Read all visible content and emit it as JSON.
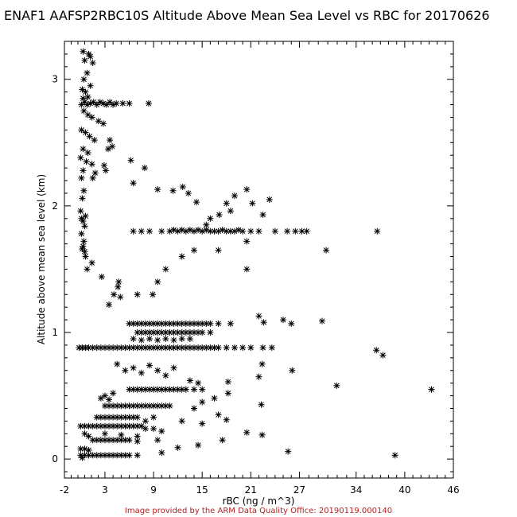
{
  "title": "ENAF1 AAFSP2RBC10S Altitude Above Mean Sea Level vs RBC for 20170626",
  "credit": "Image provided by the ARM Data Quality Office: 20190119.000140",
  "chart_data": {
    "type": "scatter",
    "xlabel": "rBC (ng / m^3)",
    "ylabel": "Altitude above mean sea level (km)",
    "xlim": [
      -2,
      46
    ],
    "ylim": [
      -0.15,
      3.3
    ],
    "xticks": [
      -2,
      3,
      9,
      15,
      21,
      27,
      34,
      40,
      46
    ],
    "yticks": [
      0,
      1,
      2,
      3
    ],
    "marker": "asterisk",
    "points": [
      [
        0.3,
        3.22
      ],
      [
        1.0,
        3.2
      ],
      [
        1.2,
        3.18
      ],
      [
        0.5,
        3.15
      ],
      [
        1.5,
        3.13
      ],
      [
        0.8,
        3.05
      ],
      [
        0.4,
        3.0
      ],
      [
        1.2,
        2.95
      ],
      [
        0.2,
        2.92
      ],
      [
        0.6,
        2.9
      ],
      [
        0.3,
        2.85
      ],
      [
        0.9,
        2.86
      ],
      [
        0.1,
        2.8
      ],
      [
        0.5,
        2.82
      ],
      [
        0.8,
        2.8
      ],
      [
        1.2,
        2.81
      ],
      [
        1.6,
        2.82
      ],
      [
        2.0,
        2.8
      ],
      [
        2.4,
        2.82
      ],
      [
        2.8,
        2.81
      ],
      [
        3.2,
        2.8
      ],
      [
        3.6,
        2.82
      ],
      [
        4.0,
        2.8
      ],
      [
        4.4,
        2.81
      ],
      [
        5.2,
        2.81
      ],
      [
        6.0,
        2.81
      ],
      [
        8.4,
        2.81
      ],
      [
        0.4,
        2.75
      ],
      [
        0.9,
        2.72
      ],
      [
        1.4,
        2.7
      ],
      [
        2.2,
        2.67
      ],
      [
        2.8,
        2.65
      ],
      [
        0.1,
        2.6
      ],
      [
        0.6,
        2.58
      ],
      [
        1.1,
        2.55
      ],
      [
        1.7,
        2.52
      ],
      [
        3.6,
        2.52
      ],
      [
        0.3,
        2.45
      ],
      [
        0.9,
        2.42
      ],
      [
        3.4,
        2.45
      ],
      [
        3.9,
        2.47
      ],
      [
        0.0,
        2.38
      ],
      [
        0.7,
        2.35
      ],
      [
        1.4,
        2.33
      ],
      [
        2.9,
        2.32
      ],
      [
        3.1,
        2.28
      ],
      [
        0.3,
        2.28
      ],
      [
        1.8,
        2.26
      ],
      [
        1.5,
        2.22
      ],
      [
        6.2,
        2.36
      ],
      [
        7.9,
        2.3
      ],
      [
        0.1,
        2.22
      ],
      [
        0.4,
        2.12
      ],
      [
        0.2,
        2.06
      ],
      [
        6.5,
        2.18
      ],
      [
        9.5,
        2.13
      ],
      [
        11.4,
        2.12
      ],
      [
        0.0,
        1.96
      ],
      [
        0.3,
        1.88
      ],
      [
        0.5,
        1.84
      ],
      [
        0.1,
        1.78
      ],
      [
        0.4,
        1.72
      ],
      [
        0.2,
        1.66
      ],
      [
        0.6,
        1.6
      ],
      [
        1.4,
        1.55
      ],
      [
        0.8,
        1.5
      ],
      [
        2.6,
        1.44
      ],
      [
        4.6,
        1.36
      ],
      [
        4.1,
        1.3
      ],
      [
        4.7,
        1.4
      ],
      [
        4.9,
        1.28
      ],
      [
        3.5,
        1.22
      ],
      [
        7.0,
        1.3
      ],
      [
        8.9,
        1.3
      ],
      [
        9.5,
        1.4
      ],
      [
        10.5,
        1.5
      ],
      [
        12.5,
        1.6
      ],
      [
        14.0,
        1.65
      ],
      [
        17.0,
        1.65
      ],
      [
        20.5,
        1.72
      ],
      [
        20.5,
        1.5
      ],
      [
        30.3,
        1.65
      ],
      [
        12.6,
        2.15
      ],
      [
        13.3,
        2.1
      ],
      [
        14.3,
        2.03
      ],
      [
        16.0,
        1.9
      ],
      [
        15.5,
        1.85
      ],
      [
        17.1,
        1.93
      ],
      [
        18.0,
        2.02
      ],
      [
        18.5,
        1.96
      ],
      [
        19.0,
        2.08
      ],
      [
        20.5,
        2.13
      ],
      [
        21.2,
        2.02
      ],
      [
        22.5,
        1.93
      ],
      [
        23.3,
        2.05
      ],
      [
        6.5,
        1.8
      ],
      [
        7.5,
        1.8
      ],
      [
        8.5,
        1.8
      ],
      [
        10.0,
        1.8
      ],
      [
        11.0,
        1.8
      ],
      [
        11.5,
        1.81
      ],
      [
        12.0,
        1.8
      ],
      [
        12.5,
        1.81
      ],
      [
        13.0,
        1.8
      ],
      [
        13.5,
        1.81
      ],
      [
        14.0,
        1.8
      ],
      [
        14.5,
        1.81
      ],
      [
        15.0,
        1.8
      ],
      [
        15.5,
        1.81
      ],
      [
        16.0,
        1.8
      ],
      [
        16.5,
        1.8
      ],
      [
        17.0,
        1.8
      ],
      [
        17.5,
        1.81
      ],
      [
        18.0,
        1.8
      ],
      [
        18.5,
        1.8
      ],
      [
        19.0,
        1.8
      ],
      [
        19.5,
        1.81
      ],
      [
        20.0,
        1.8
      ],
      [
        21.0,
        1.8
      ],
      [
        22.0,
        1.8
      ],
      [
        24.0,
        1.8
      ],
      [
        25.5,
        1.8
      ],
      [
        26.5,
        1.8
      ],
      [
        27.3,
        1.8
      ],
      [
        27.9,
        1.8
      ],
      [
        36.6,
        1.8
      ],
      [
        -0.2,
        0.88
      ],
      [
        0.2,
        0.88
      ],
      [
        0.6,
        0.88
      ],
      [
        1.0,
        0.88
      ],
      [
        1.5,
        0.88
      ],
      [
        2.0,
        0.88
      ],
      [
        2.5,
        0.88
      ],
      [
        3.0,
        0.88
      ],
      [
        3.5,
        0.88
      ],
      [
        4.0,
        0.88
      ],
      [
        4.5,
        0.88
      ],
      [
        5.0,
        0.88
      ],
      [
        5.5,
        0.88
      ],
      [
        6.0,
        0.88
      ],
      [
        6.5,
        0.88
      ],
      [
        7.0,
        0.88
      ],
      [
        7.5,
        0.88
      ],
      [
        8.0,
        0.88
      ],
      [
        8.5,
        0.88
      ],
      [
        9.0,
        0.88
      ],
      [
        9.5,
        0.88
      ],
      [
        10.0,
        0.88
      ],
      [
        10.5,
        0.88
      ],
      [
        11.0,
        0.88
      ],
      [
        11.5,
        0.88
      ],
      [
        12.0,
        0.88
      ],
      [
        12.5,
        0.88
      ],
      [
        13.0,
        0.88
      ],
      [
        13.5,
        0.88
      ],
      [
        14.0,
        0.88
      ],
      [
        14.5,
        0.88
      ],
      [
        15.0,
        0.88
      ],
      [
        15.5,
        0.88
      ],
      [
        16.0,
        0.88
      ],
      [
        16.5,
        0.88
      ],
      [
        17.0,
        0.88
      ],
      [
        18.0,
        0.88
      ],
      [
        19.0,
        0.88
      ],
      [
        20.0,
        0.88
      ],
      [
        21.0,
        0.88
      ],
      [
        22.5,
        0.88
      ],
      [
        23.6,
        0.88
      ],
      [
        36.5,
        0.86
      ],
      [
        37.3,
        0.82
      ],
      [
        6.0,
        1.07
      ],
      [
        6.5,
        1.07
      ],
      [
        7.0,
        1.07
      ],
      [
        7.5,
        1.07
      ],
      [
        8.0,
        1.07
      ],
      [
        8.5,
        1.07
      ],
      [
        9.0,
        1.07
      ],
      [
        9.5,
        1.07
      ],
      [
        10.0,
        1.07
      ],
      [
        10.5,
        1.07
      ],
      [
        11.0,
        1.07
      ],
      [
        11.5,
        1.07
      ],
      [
        12.0,
        1.07
      ],
      [
        12.5,
        1.07
      ],
      [
        13.0,
        1.07
      ],
      [
        13.5,
        1.07
      ],
      [
        14.0,
        1.07
      ],
      [
        14.5,
        1.07
      ],
      [
        15.0,
        1.07
      ],
      [
        15.5,
        1.07
      ],
      [
        16.0,
        1.07
      ],
      [
        17.0,
        1.07
      ],
      [
        18.5,
        1.07
      ],
      [
        22.0,
        1.13
      ],
      [
        22.6,
        1.08
      ],
      [
        25.0,
        1.1
      ],
      [
        26.0,
        1.07
      ],
      [
        29.8,
        1.09
      ],
      [
        7.0,
        1.0
      ],
      [
        7.5,
        1.0
      ],
      [
        8.0,
        1.0
      ],
      [
        8.5,
        1.0
      ],
      [
        9.0,
        1.0
      ],
      [
        9.5,
        1.0
      ],
      [
        10.0,
        1.0
      ],
      [
        10.5,
        1.0
      ],
      [
        11.0,
        1.0
      ],
      [
        11.5,
        1.0
      ],
      [
        12.0,
        1.0
      ],
      [
        12.5,
        1.0
      ],
      [
        13.0,
        1.0
      ],
      [
        13.5,
        1.0
      ],
      [
        14.0,
        1.0
      ],
      [
        14.5,
        1.0
      ],
      [
        15.0,
        1.0
      ],
      [
        16.0,
        1.0
      ],
      [
        6.5,
        0.95
      ],
      [
        7.5,
        0.94
      ],
      [
        8.5,
        0.95
      ],
      [
        9.5,
        0.94
      ],
      [
        10.5,
        0.95
      ],
      [
        11.5,
        0.94
      ],
      [
        12.5,
        0.95
      ],
      [
        13.5,
        0.95
      ],
      [
        4.5,
        0.75
      ],
      [
        5.5,
        0.7
      ],
      [
        6.5,
        0.72
      ],
      [
        7.5,
        0.68
      ],
      [
        8.5,
        0.74
      ],
      [
        9.5,
        0.7
      ],
      [
        10.5,
        0.66
      ],
      [
        11.5,
        0.72
      ],
      [
        13.5,
        0.62
      ],
      [
        14.5,
        0.6
      ],
      [
        22.4,
        0.75
      ],
      [
        22.0,
        0.65
      ],
      [
        26.1,
        0.7
      ],
      [
        18.2,
        0.61
      ],
      [
        31.6,
        0.58
      ],
      [
        43.3,
        0.55
      ],
      [
        6.0,
        0.55
      ],
      [
        6.5,
        0.55
      ],
      [
        7.0,
        0.55
      ],
      [
        7.5,
        0.55
      ],
      [
        8.0,
        0.55
      ],
      [
        8.5,
        0.55
      ],
      [
        9.0,
        0.55
      ],
      [
        9.5,
        0.55
      ],
      [
        10.0,
        0.55
      ],
      [
        10.5,
        0.55
      ],
      [
        11.0,
        0.55
      ],
      [
        11.5,
        0.55
      ],
      [
        12.0,
        0.55
      ],
      [
        12.5,
        0.55
      ],
      [
        13.0,
        0.55
      ],
      [
        14.0,
        0.55
      ],
      [
        15.0,
        0.55
      ],
      [
        2.5,
        0.48
      ],
      [
        3.0,
        0.5
      ],
      [
        3.5,
        0.47
      ],
      [
        4.0,
        0.52
      ],
      [
        3.0,
        0.42
      ],
      [
        3.5,
        0.42
      ],
      [
        4.0,
        0.42
      ],
      [
        4.5,
        0.42
      ],
      [
        5.0,
        0.42
      ],
      [
        5.5,
        0.42
      ],
      [
        6.0,
        0.42
      ],
      [
        6.5,
        0.42
      ],
      [
        7.0,
        0.42
      ],
      [
        7.5,
        0.42
      ],
      [
        8.0,
        0.42
      ],
      [
        8.5,
        0.42
      ],
      [
        9.0,
        0.42
      ],
      [
        9.5,
        0.42
      ],
      [
        10.0,
        0.42
      ],
      [
        10.5,
        0.42
      ],
      [
        11.0,
        0.42
      ],
      [
        14.0,
        0.4
      ],
      [
        15.0,
        0.45
      ],
      [
        17.0,
        0.35
      ],
      [
        18.2,
        0.52
      ],
      [
        22.3,
        0.43
      ],
      [
        16.5,
        0.48
      ],
      [
        2.0,
        0.33
      ],
      [
        2.5,
        0.33
      ],
      [
        3.0,
        0.33
      ],
      [
        3.5,
        0.33
      ],
      [
        4.0,
        0.33
      ],
      [
        4.5,
        0.33
      ],
      [
        5.0,
        0.33
      ],
      [
        5.5,
        0.33
      ],
      [
        6.0,
        0.33
      ],
      [
        6.5,
        0.33
      ],
      [
        7.0,
        0.33
      ],
      [
        8.0,
        0.3
      ],
      [
        9.0,
        0.33
      ],
      [
        12.5,
        0.3
      ],
      [
        15.0,
        0.28
      ],
      [
        18.0,
        0.31
      ],
      [
        0.0,
        0.26
      ],
      [
        0.5,
        0.26
      ],
      [
        1.0,
        0.26
      ],
      [
        1.5,
        0.26
      ],
      [
        2.0,
        0.26
      ],
      [
        2.5,
        0.26
      ],
      [
        3.0,
        0.26
      ],
      [
        3.5,
        0.26
      ],
      [
        4.0,
        0.26
      ],
      [
        4.5,
        0.26
      ],
      [
        5.0,
        0.26
      ],
      [
        5.5,
        0.26
      ],
      [
        6.0,
        0.26
      ],
      [
        6.5,
        0.26
      ],
      [
        7.0,
        0.26
      ],
      [
        7.5,
        0.26
      ],
      [
        8.0,
        0.24
      ],
      [
        9.0,
        0.24
      ],
      [
        10.0,
        0.22
      ],
      [
        20.5,
        0.21
      ],
      [
        22.4,
        0.19
      ],
      [
        0.5,
        0.2
      ],
      [
        1.0,
        0.18
      ],
      [
        3.0,
        0.2
      ],
      [
        5.0,
        0.19
      ],
      [
        7.0,
        0.18
      ],
      [
        1.5,
        0.15
      ],
      [
        2.0,
        0.15
      ],
      [
        2.5,
        0.15
      ],
      [
        3.0,
        0.15
      ],
      [
        3.5,
        0.15
      ],
      [
        4.0,
        0.15
      ],
      [
        4.5,
        0.15
      ],
      [
        5.0,
        0.15
      ],
      [
        5.5,
        0.15
      ],
      [
        6.0,
        0.15
      ],
      [
        7.0,
        0.14
      ],
      [
        9.5,
        0.15
      ],
      [
        17.5,
        0.15
      ],
      [
        0.0,
        0.08
      ],
      [
        0.5,
        0.08
      ],
      [
        1.0,
        0.07
      ],
      [
        12.0,
        0.09
      ],
      [
        14.5,
        0.11
      ],
      [
        0.0,
        0.03
      ],
      [
        0.5,
        0.03
      ],
      [
        1.0,
        0.03
      ],
      [
        1.5,
        0.03
      ],
      [
        2.0,
        0.03
      ],
      [
        2.5,
        0.03
      ],
      [
        3.0,
        0.03
      ],
      [
        3.5,
        0.03
      ],
      [
        4.0,
        0.03
      ],
      [
        4.5,
        0.03
      ],
      [
        5.0,
        0.03
      ],
      [
        5.5,
        0.03
      ],
      [
        6.0,
        0.03
      ],
      [
        7.0,
        0.03
      ],
      [
        10.0,
        0.05
      ],
      [
        0.2,
        0.01
      ],
      [
        25.6,
        0.06
      ],
      [
        38.8,
        0.03
      ],
      [
        0.3,
        1.68
      ],
      [
        0.5,
        1.64
      ],
      [
        0.1,
        1.9
      ],
      [
        0.6,
        1.92
      ]
    ]
  }
}
